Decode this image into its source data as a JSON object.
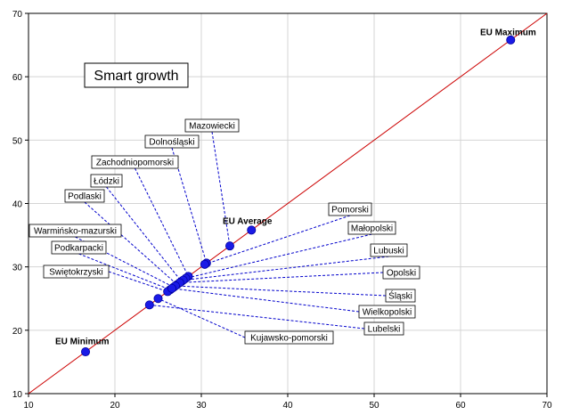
{
  "chart_data": {
    "type": "scatter",
    "title": "Smart growth",
    "xlabel": "",
    "ylabel": "",
    "xlim": [
      10,
      70
    ],
    "ylim": [
      10,
      70
    ],
    "xticks": [
      "10",
      "20",
      "30",
      "40",
      "50",
      "60",
      "70"
    ],
    "yticks": [
      "10",
      "20",
      "30",
      "40",
      "50",
      "60",
      "70"
    ],
    "grid": true,
    "diagonal_line": {
      "from": [
        10,
        10
      ],
      "to": [
        70,
        70
      ],
      "color": "#cc0000"
    },
    "marker_color": "#1a1ae6",
    "leader_color": "#0000cc",
    "points": [
      {
        "name": "EU Maximum",
        "x": 65.8,
        "y": 65.8,
        "style": "bold"
      },
      {
        "name": "EU Average",
        "x": 35.8,
        "y": 35.8,
        "style": "bold"
      },
      {
        "name": "EU Minimum",
        "x": 16.6,
        "y": 16.6,
        "style": "bold"
      },
      {
        "name": "Mazowiecki",
        "x": 33.3,
        "y": 33.3,
        "style": "box"
      },
      {
        "name": "Dolnośląski",
        "x": 30.6,
        "y": 30.6,
        "style": "box"
      },
      {
        "name": "Zachodniopomorski",
        "x": 28.5,
        "y": 28.5,
        "style": "box"
      },
      {
        "name": "Łódzki",
        "x": 27.7,
        "y": 27.7,
        "style": "box"
      },
      {
        "name": "Podlaski",
        "x": 27.2,
        "y": 27.2,
        "style": "box"
      },
      {
        "name": "Warmińsko-mazurski",
        "x": 26.8,
        "y": 26.8,
        "style": "box"
      },
      {
        "name": "Podkarpacki",
        "x": 26.4,
        "y": 26.4,
        "style": "box"
      },
      {
        "name": "Swiętokrzyski",
        "x": 26.1,
        "y": 26.1,
        "style": "box"
      },
      {
        "name": "Pomorski",
        "x": 30.4,
        "y": 30.4,
        "style": "box"
      },
      {
        "name": "Małopolski",
        "x": 28.2,
        "y": 28.2,
        "style": "box"
      },
      {
        "name": "Lubuski",
        "x": 27.9,
        "y": 27.9,
        "style": "box"
      },
      {
        "name": "Opolski",
        "x": 27.5,
        "y": 27.5,
        "style": "box"
      },
      {
        "name": "Śląski",
        "x": 27.0,
        "y": 27.0,
        "style": "box"
      },
      {
        "name": "Wielkopolski",
        "x": 26.6,
        "y": 26.6,
        "style": "box"
      },
      {
        "name": "Lubelski",
        "x": 24.0,
        "y": 24.0,
        "style": "box"
      },
      {
        "name": "Kujawsko-pomorski",
        "x": 25.0,
        "y": 25.0,
        "style": "box"
      }
    ]
  }
}
